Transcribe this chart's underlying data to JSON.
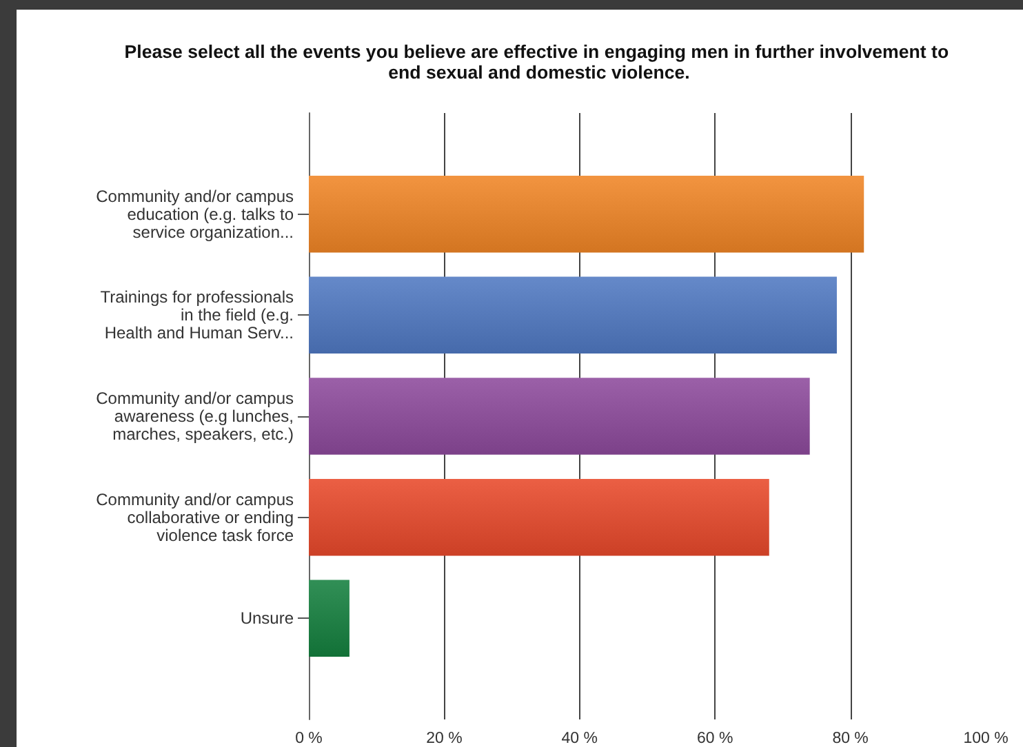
{
  "chart_data": {
    "type": "bar",
    "orientation": "horizontal",
    "title": "Please select all the events you believe are effective in engaging men in further involvement to end sexual and domestic violence.",
    "categories": [
      "Community and/or campus\neducation (e.g. talks to\nservice organization...",
      "Trainings for professionals\nin the field (e.g.\nHealth and Human Serv...",
      "Community and/or campus\nawareness (e.g lunches,\nmarches, speakers, etc.)",
      "Community and/or campus\ncollaborative or ending\nviolence task force",
      "Unsure"
    ],
    "values": [
      82,
      78,
      74,
      68,
      6
    ],
    "colors": [
      "#f08526",
      "#5079c2",
      "#8d4a9c",
      "#e8492b",
      "#15803f"
    ],
    "xlim": [
      0,
      100
    ],
    "xticks": [
      {
        "value": 0,
        "label": "0 %"
      },
      {
        "value": 20,
        "label": "20 %"
      },
      {
        "value": 40,
        "label": "40 %"
      },
      {
        "value": 60,
        "label": "60 %"
      },
      {
        "value": 80,
        "label": "80 %"
      },
      {
        "value": 100,
        "label": "100 %"
      }
    ],
    "grid": "x"
  }
}
